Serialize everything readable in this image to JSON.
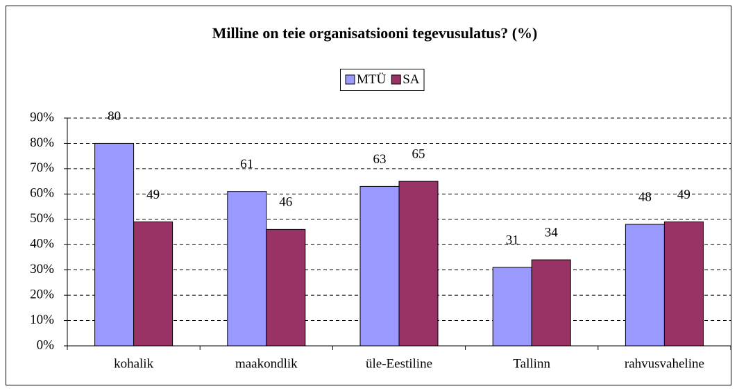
{
  "chart_data": {
    "type": "bar",
    "title": "Milline on teie organisatsiooni tegevusulatus? (%)",
    "categories": [
      "kohalik",
      "maakondlik",
      "üle-Eestiline",
      "Tallinn",
      "rahvusvaheline"
    ],
    "series": [
      {
        "name": "MTÜ",
        "color": "#9999ff",
        "values": [
          80,
          61,
          63,
          31,
          48
        ]
      },
      {
        "name": "SA",
        "color": "#993366",
        "values": [
          49,
          46,
          65,
          34,
          49
        ]
      }
    ],
    "ylim": [
      0,
      90
    ],
    "yticks": [
      {
        "value": 0,
        "label": "0%"
      },
      {
        "value": 10,
        "label": "10%"
      },
      {
        "value": 20,
        "label": "20%"
      },
      {
        "value": 30,
        "label": "30%"
      },
      {
        "value": 40,
        "label": "40%"
      },
      {
        "value": 50,
        "label": "50%"
      },
      {
        "value": 60,
        "label": "60%"
      },
      {
        "value": 70,
        "label": "70%"
      },
      {
        "value": 80,
        "label": "80%"
      },
      {
        "value": 90,
        "label": "90%"
      }
    ],
    "grid": true,
    "legend": "top"
  }
}
